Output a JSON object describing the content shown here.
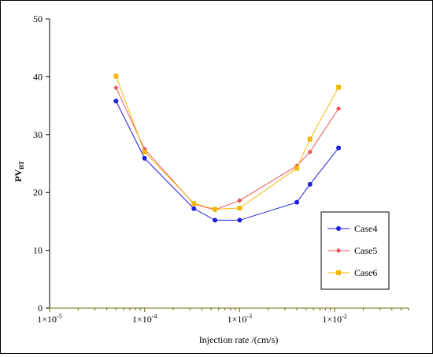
{
  "chart_data": {
    "type": "line",
    "title": "",
    "xlabel": "Injection rate /(cm/s)",
    "ylabel": "PV",
    "ylabel_subscript": "BT",
    "xscale": "log",
    "xlim": [
      1e-05,
      0.06
    ],
    "ylim": [
      0,
      50
    ],
    "yticks": [
      0,
      10,
      20,
      30,
      40,
      50
    ],
    "xticks": [
      {
        "value": 1e-05,
        "base": "1",
        "exponent": "-5"
      },
      {
        "value": 0.0001,
        "base": "1",
        "exponent": "-4"
      },
      {
        "value": 0.001,
        "base": "1",
        "exponent": "-3"
      },
      {
        "value": 0.01,
        "base": "1",
        "exponent": "-2"
      }
    ],
    "grid": false,
    "legend_position": "bottom-right",
    "series": [
      {
        "name": "Case4",
        "color": "#1f1fdc",
        "marker": "circle",
        "x": [
          5e-05,
          0.0001,
          0.00033,
          0.00055,
          0.001,
          0.004,
          0.0055,
          0.011
        ],
        "y": [
          35.8,
          25.9,
          17.2,
          15.2,
          15.2,
          18.3,
          21.4,
          27.7
        ]
      },
      {
        "name": "Case5",
        "color": "#e8535a",
        "marker": "diamond",
        "x": [
          5e-05,
          0.0001,
          0.00033,
          0.00055,
          0.001,
          0.004,
          0.0055,
          0.011
        ],
        "y": [
          38.1,
          27.5,
          18.0,
          17.0,
          18.6,
          24.6,
          27.0,
          34.5
        ]
      },
      {
        "name": "Case6",
        "color": "#f2b705",
        "marker": "square",
        "x": [
          5e-05,
          0.0001,
          0.00033,
          0.00055,
          0.001,
          0.004,
          0.0055,
          0.011
        ],
        "y": [
          40.1,
          27.0,
          18.1,
          17.1,
          17.3,
          24.2,
          29.2,
          38.2
        ]
      }
    ]
  }
}
